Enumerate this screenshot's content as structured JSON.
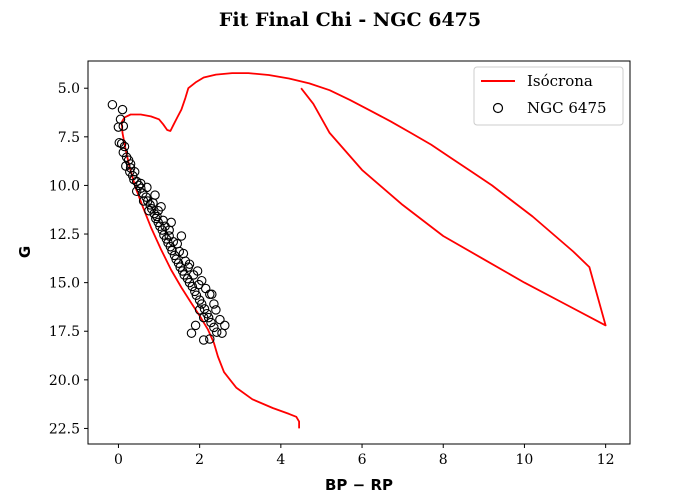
{
  "chart_data": {
    "type": "scatter",
    "title": "Fit Final Chi - NGC 6475",
    "xlabel": "BP − RP",
    "ylabel": "G",
    "xlim": [
      -0.75,
      12.6
    ],
    "ylim": [
      23.3,
      3.6
    ],
    "y_inverted": true,
    "grid": false,
    "legend_position": "top-right",
    "xticks": [
      0,
      2,
      4,
      6,
      8,
      10,
      12
    ],
    "xtick_labels": [
      "0",
      "2",
      "4",
      "6",
      "8",
      "10",
      "12"
    ],
    "yticks": [
      5.0,
      7.5,
      10.0,
      12.5,
      15.0,
      17.5,
      20.0,
      22.5
    ],
    "ytick_labels": [
      "5.0",
      "7.5",
      "10.0",
      "12.5",
      "15.0",
      "17.5",
      "20.0",
      "22.5"
    ],
    "series": [
      {
        "name": "Isócrona",
        "kind": "line",
        "color": "#ff0000",
        "points": [
          [
            4.45,
            22.5
          ],
          [
            4.45,
            22.15
          ],
          [
            4.38,
            21.9
          ],
          [
            4.2,
            21.75
          ],
          [
            3.8,
            21.45
          ],
          [
            3.3,
            21.0
          ],
          [
            2.9,
            20.4
          ],
          [
            2.6,
            19.6
          ],
          [
            2.45,
            18.8
          ],
          [
            2.35,
            18.1
          ],
          [
            2.2,
            17.4
          ],
          [
            2.0,
            16.7
          ],
          [
            1.78,
            16.0
          ],
          [
            1.55,
            15.25
          ],
          [
            1.3,
            14.35
          ],
          [
            1.05,
            13.3
          ],
          [
            0.8,
            12.15
          ],
          [
            0.6,
            11.1
          ],
          [
            0.42,
            10.1
          ],
          [
            0.28,
            9.1
          ],
          [
            0.18,
            8.2
          ],
          [
            0.1,
            7.3
          ],
          [
            0.08,
            6.75
          ],
          [
            0.15,
            6.5
          ],
          [
            0.3,
            6.35
          ],
          [
            0.55,
            6.35
          ],
          [
            0.8,
            6.45
          ],
          [
            1.0,
            6.6
          ],
          [
            1.1,
            6.85
          ],
          [
            1.2,
            7.15
          ],
          [
            1.28,
            7.2
          ],
          [
            1.35,
            6.9
          ],
          [
            1.45,
            6.5
          ],
          [
            1.55,
            6.1
          ],
          [
            1.65,
            5.5
          ],
          [
            1.72,
            5.0
          ],
          [
            1.9,
            4.7
          ],
          [
            2.1,
            4.45
          ],
          [
            2.4,
            4.3
          ],
          [
            2.8,
            4.22
          ],
          [
            3.2,
            4.22
          ],
          [
            3.7,
            4.32
          ],
          [
            4.2,
            4.5
          ],
          [
            4.7,
            4.75
          ],
          [
            5.2,
            5.1
          ],
          [
            5.7,
            5.6
          ],
          [
            6.2,
            6.15
          ],
          [
            6.7,
            6.7
          ],
          [
            7.2,
            7.3
          ],
          [
            7.7,
            7.9
          ],
          [
            8.2,
            8.6
          ],
          [
            8.7,
            9.3
          ],
          [
            9.2,
            10.0
          ],
          [
            9.7,
            10.8
          ],
          [
            10.2,
            11.6
          ],
          [
            10.7,
            12.5
          ],
          [
            11.2,
            13.4
          ],
          [
            11.6,
            14.2
          ],
          [
            12.0,
            17.2
          ],
          [
            11.0,
            16.1
          ],
          [
            10.0,
            15.0
          ],
          [
            9.0,
            13.8
          ],
          [
            8.0,
            12.6
          ],
          [
            7.0,
            11.0
          ],
          [
            6.0,
            9.2
          ],
          [
            5.2,
            7.3
          ],
          [
            4.8,
            5.8
          ],
          [
            4.5,
            5.0
          ]
        ]
      },
      {
        "name": "NGC 6475",
        "kind": "scatter",
        "marker": "open-circle",
        "color": "#000000",
        "points": [
          [
            -0.15,
            5.85
          ],
          [
            0.1,
            6.1
          ],
          [
            0.05,
            6.6
          ],
          [
            0.0,
            7.0
          ],
          [
            0.12,
            6.95
          ],
          [
            0.02,
            7.8
          ],
          [
            0.08,
            7.85
          ],
          [
            0.15,
            8.0
          ],
          [
            0.12,
            8.3
          ],
          [
            0.2,
            8.55
          ],
          [
            0.25,
            8.7
          ],
          [
            0.18,
            9.0
          ],
          [
            0.3,
            9.1
          ],
          [
            0.28,
            9.3
          ],
          [
            0.35,
            9.5
          ],
          [
            0.38,
            9.7
          ],
          [
            0.45,
            9.8
          ],
          [
            0.5,
            10.0
          ],
          [
            0.55,
            10.15
          ],
          [
            0.6,
            10.4
          ],
          [
            0.68,
            10.6
          ],
          [
            0.72,
            10.8
          ],
          [
            0.78,
            11.0
          ],
          [
            0.82,
            11.2
          ],
          [
            0.88,
            11.45
          ],
          [
            0.92,
            11.7
          ],
          [
            0.98,
            11.9
          ],
          [
            1.02,
            12.1
          ],
          [
            1.08,
            12.3
          ],
          [
            1.12,
            12.55
          ],
          [
            1.18,
            12.75
          ],
          [
            1.22,
            12.95
          ],
          [
            1.28,
            13.15
          ],
          [
            1.32,
            13.35
          ],
          [
            1.38,
            13.6
          ],
          [
            1.42,
            13.8
          ],
          [
            1.48,
            14.0
          ],
          [
            1.52,
            14.2
          ],
          [
            1.58,
            14.4
          ],
          [
            1.62,
            14.6
          ],
          [
            1.7,
            14.8
          ],
          [
            1.75,
            15.0
          ],
          [
            1.82,
            15.2
          ],
          [
            1.88,
            15.45
          ],
          [
            1.92,
            15.65
          ],
          [
            2.0,
            15.9
          ],
          [
            2.05,
            16.1
          ],
          [
            2.12,
            16.35
          ],
          [
            2.18,
            16.6
          ],
          [
            2.22,
            16.8
          ],
          [
            2.28,
            17.05
          ],
          [
            2.35,
            17.3
          ],
          [
            2.42,
            17.55
          ],
          [
            2.55,
            17.6
          ],
          [
            1.8,
            17.6
          ],
          [
            2.25,
            17.9
          ],
          [
            2.1,
            17.95
          ],
          [
            2.3,
            15.6
          ],
          [
            2.4,
            16.4
          ],
          [
            2.5,
            16.9
          ],
          [
            2.62,
            17.2
          ],
          [
            0.45,
            10.3
          ],
          [
            0.62,
            10.8
          ],
          [
            0.75,
            11.3
          ],
          [
            0.95,
            11.6
          ],
          [
            1.15,
            12.1
          ],
          [
            1.25,
            12.6
          ],
          [
            1.45,
            13.0
          ],
          [
            1.6,
            13.5
          ],
          [
            1.75,
            14.05
          ],
          [
            1.95,
            14.4
          ],
          [
            2.05,
            14.9
          ],
          [
            2.15,
            15.3
          ],
          [
            2.25,
            15.6
          ],
          [
            2.35,
            16.1
          ],
          [
            0.7,
            10.1
          ],
          [
            0.9,
            10.5
          ],
          [
            1.05,
            11.1
          ],
          [
            1.3,
            11.9
          ],
          [
            1.55,
            12.6
          ],
          [
            0.3,
            8.9
          ],
          [
            0.4,
            9.3
          ],
          [
            0.55,
            9.9
          ],
          [
            2.0,
            16.4
          ],
          [
            1.9,
            17.2
          ],
          [
            2.1,
            16.8
          ],
          [
            1.98,
            15.1
          ],
          [
            1.85,
            14.6
          ],
          [
            1.72,
            14.2
          ],
          [
            1.65,
            13.9
          ],
          [
            1.5,
            13.4
          ],
          [
            1.35,
            12.9
          ],
          [
            1.25,
            12.3
          ],
          [
            1.1,
            11.8
          ],
          [
            0.98,
            11.3
          ],
          [
            0.85,
            10.9
          ]
        ]
      }
    ]
  }
}
